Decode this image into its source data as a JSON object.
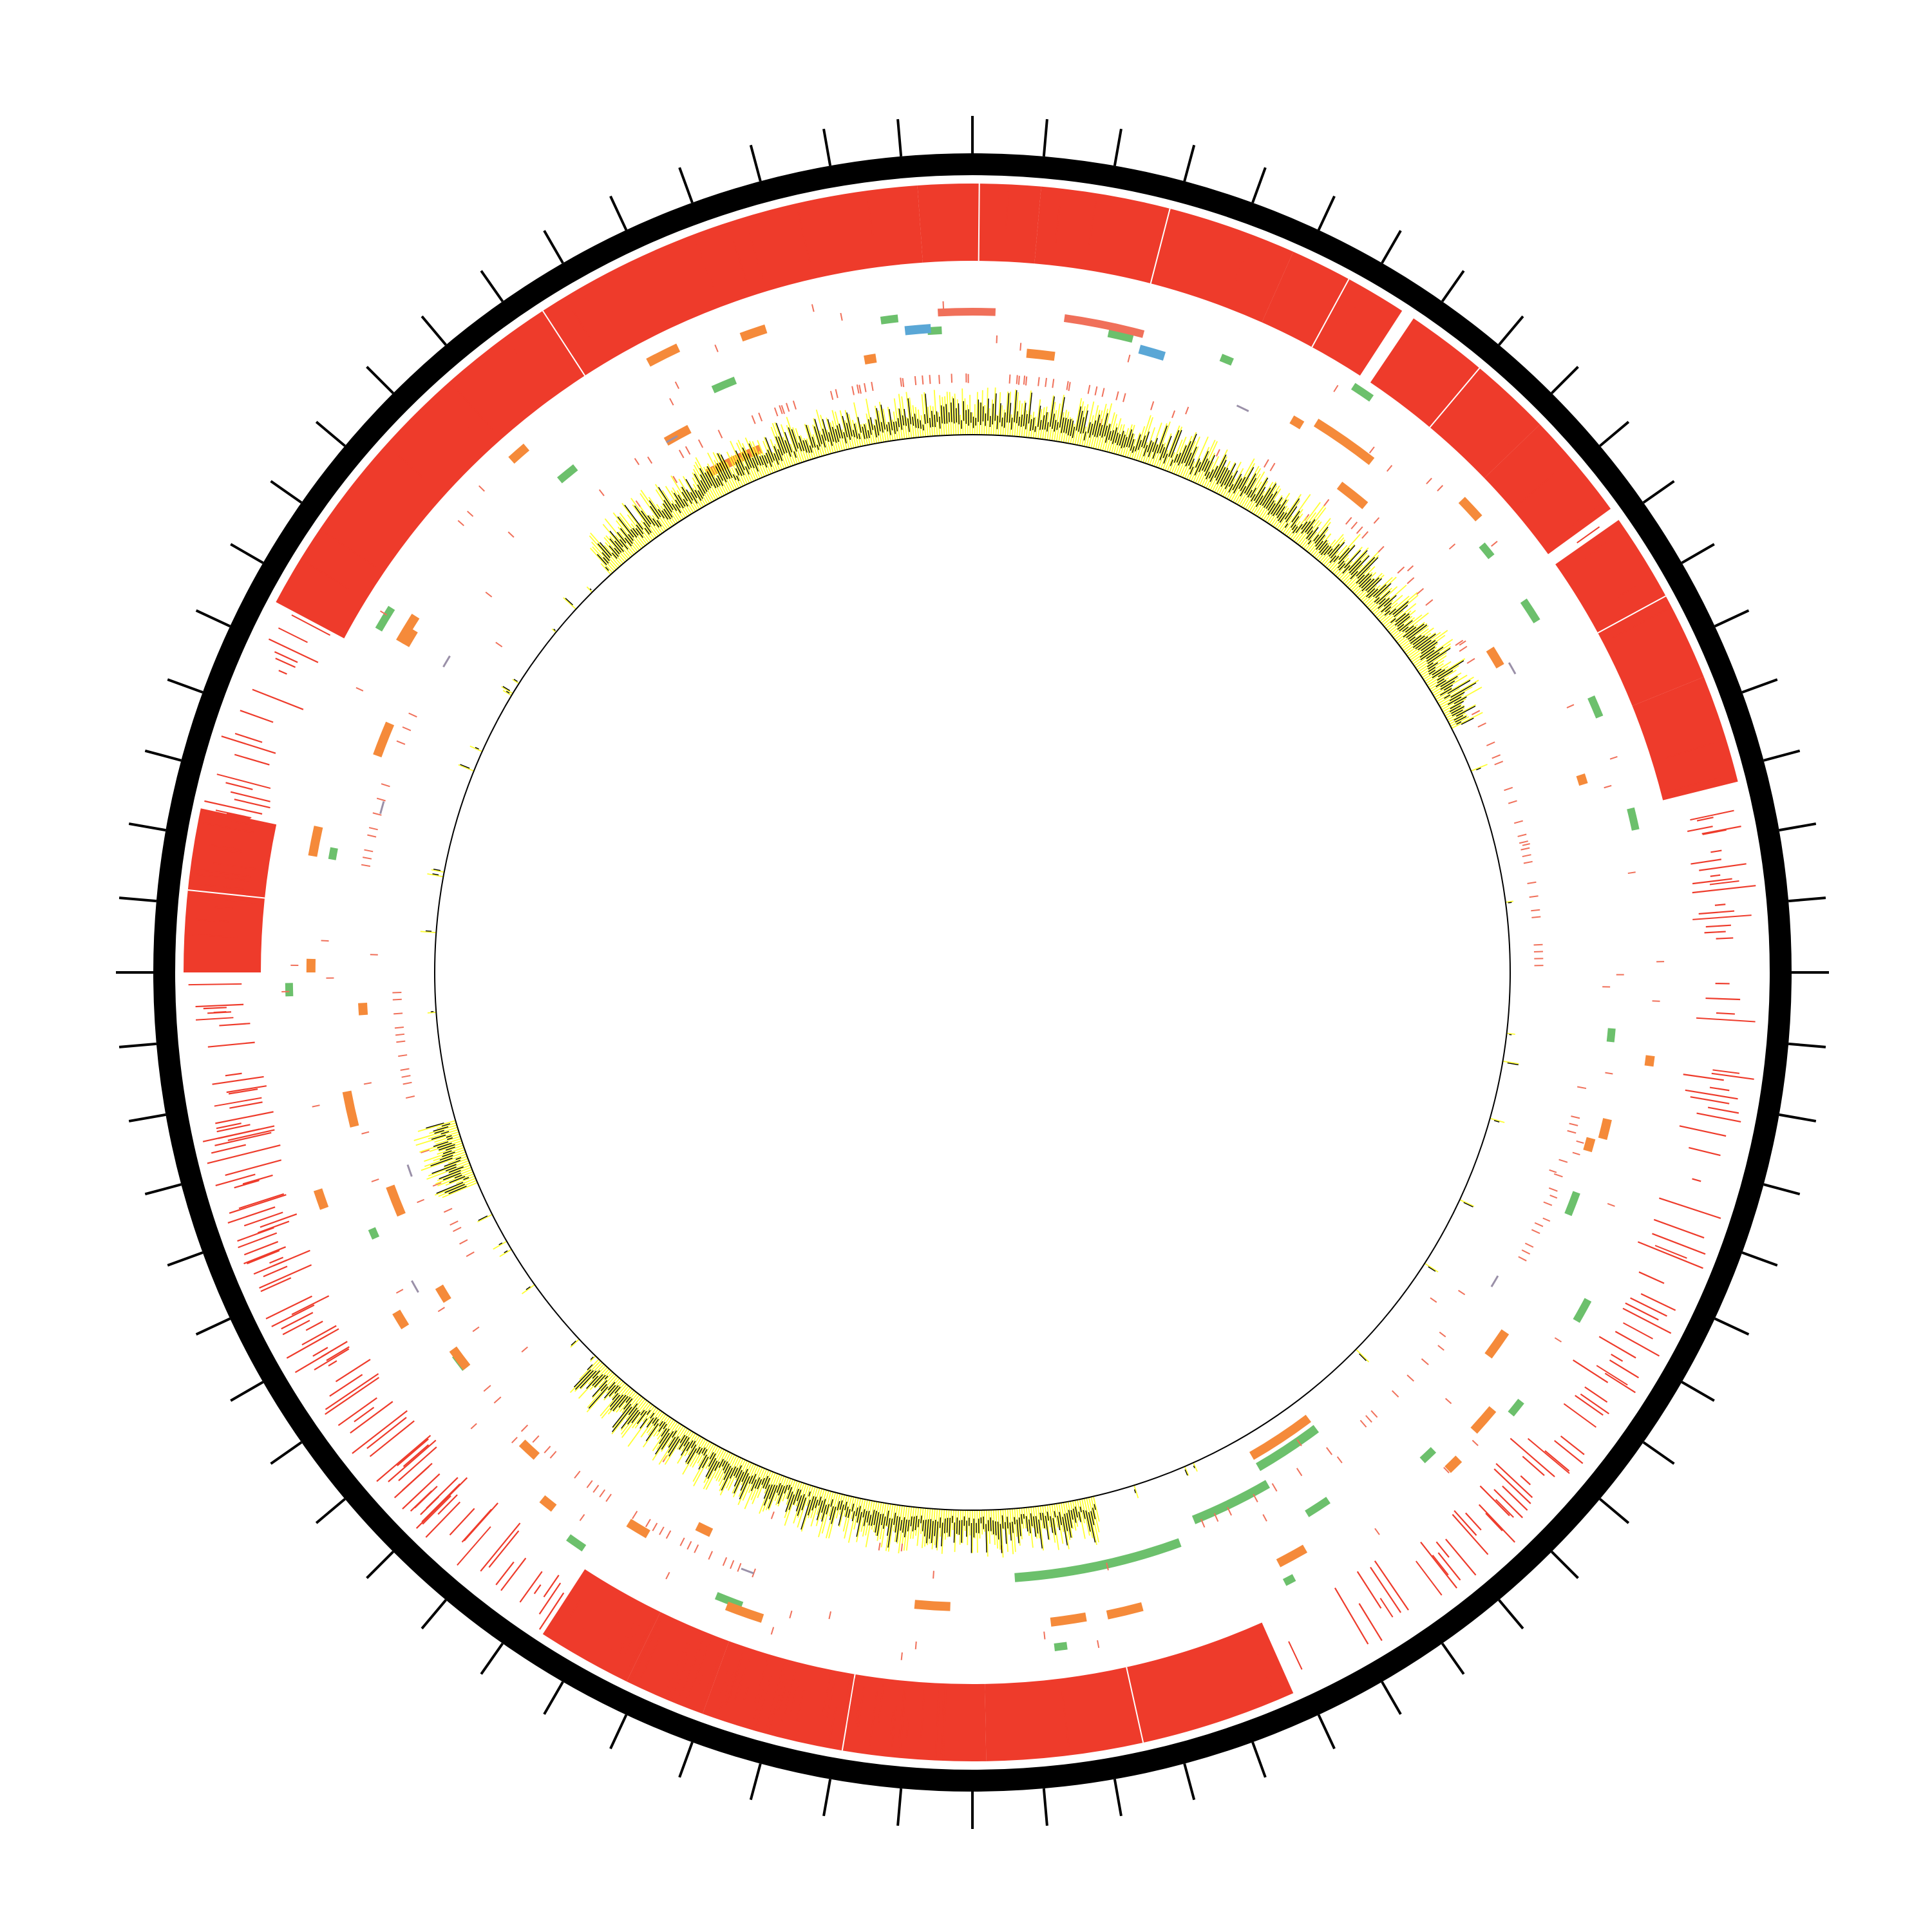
{
  "diagram": {
    "type": "circular-genome-map",
    "tick_count": 72,
    "colors": {
      "backbone": "#000000",
      "outer_features": "#ee3b2b",
      "feature_orange": "#f58a3a",
      "feature_green": "#6cc06c",
      "feature_salmon": "#f0705a",
      "feature_blue": "#5aa7d6",
      "feature_grey": "#9a90a8",
      "coverage_pos": "#ffff33",
      "coverage_neg": "#000000"
    },
    "tracks": {
      "outer_blocks_deg": [
        [
          -62,
          -4
        ],
        [
          -4,
          5
        ],
        [
          5,
          24
        ],
        [
          24,
          33
        ],
        [
          34,
          46
        ],
        [
          46,
          54
        ],
        [
          55,
          68
        ],
        [
          68,
          76
        ],
        [
          -90,
          -78
        ],
        [
          156,
          179
        ],
        [
          179,
          200
        ],
        [
          200,
          206
        ],
        [
          206,
          213
        ]
      ],
      "outer_dense_deg": [
        [
          -88,
          -64
        ],
        [
          -140,
          -92
        ],
        [
          -178,
          -150
        ],
        [
          78,
          94
        ],
        [
          97,
          112
        ],
        [
          114,
          125
        ],
        [
          128,
          150
        ],
        [
          182,
          232
        ],
        [
          235,
          268
        ]
      ],
      "orange_marks_deg": [
        -28,
        5,
        -150,
        -142,
        -122,
        -110,
        -94,
        -60,
        30,
        37,
        46,
        58,
        72,
        97,
        103,
        105,
        124,
        130,
        135,
        150,
        165,
        170,
        182,
        198,
        205,
        222,
        232,
        238,
        247,
        256,
        270,
        280,
        290,
        300,
        318,
        330,
        340,
        350
      ],
      "green_marks_deg": [
        -4,
        12,
        22,
        33,
        50,
        56,
        66,
        76,
        95,
        110,
        118,
        128,
        136,
        146,
        152,
        172,
        200,
        214,
        232,
        246,
        268,
        280,
        300,
        320,
        336,
        352
      ],
      "salmon_ranges_deg": [
        [
          -30,
          18
        ],
        [
          -20,
          10
        ],
        [
          30,
          60
        ],
        [
          62,
          90
        ],
        [
          100,
          120
        ],
        [
          130,
          158
        ],
        [
          200,
          230
        ],
        [
          240,
          270
        ],
        [
          280,
          300
        ]
      ],
      "blue_marks_deg": [
        -6,
        15
      ],
      "coverage_bands_deg": [
        [
          -42,
          63
        ],
        [
          167,
          224
        ],
        [
          247,
          254
        ],
        [
          217,
          222
        ]
      ]
    }
  }
}
